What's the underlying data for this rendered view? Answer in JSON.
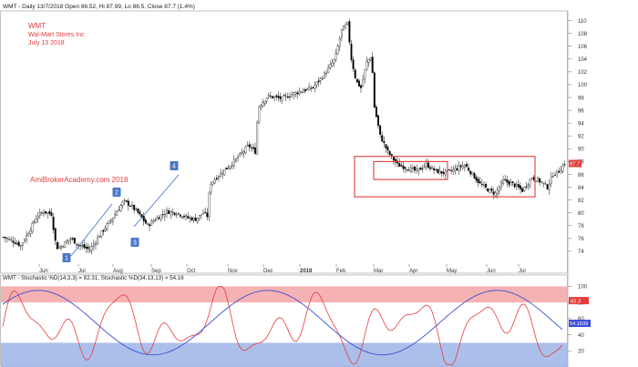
{
  "header": "WMT - Daily 13/7/2018 Open 86.52, Hi 87.99, Lo 86.5, Close 87.7 (1.4%)",
  "overlay": {
    "ticker": "WMT",
    "company": "Wal-Mart Stores Inc",
    "date": "July 13 2018",
    "watermark": "AmiBrokerAcademy.com  2018",
    "wave_labels": [
      "1",
      "2",
      "3",
      "4"
    ]
  },
  "price_panel": {
    "y_ticks": [
      74,
      76,
      78,
      80,
      82,
      84,
      86,
      88,
      90,
      92,
      94,
      96,
      98,
      100,
      102,
      104,
      106,
      108,
      110
    ],
    "y_range": [
      72,
      111.5
    ],
    "last_price_label": "87.7",
    "last_price": 87.7,
    "x_labels": [
      "Jun",
      "Jul",
      "Aug",
      "Sep",
      "Oct",
      "Nov",
      "Dec",
      "2018",
      "Feb",
      "Mar",
      "Apr",
      "May",
      "Jun",
      "Jul"
    ],
    "rectangles": [
      {
        "name": "outer-box",
        "range": [
          82.5,
          88.8
        ]
      },
      {
        "name": "inner-box",
        "range": [
          85.2,
          88.0
        ]
      }
    ]
  },
  "stoch_panel": {
    "title": "WMT - Stochastic %D(14,3,3) = 82.31, Stochastic %D(34,13,13) = 54.16",
    "y_ticks": [
      20,
      40,
      60,
      80,
      100
    ],
    "y_range": [
      0,
      105
    ],
    "overbought_zone": [
      80,
      100
    ],
    "oversold_zone": [
      0,
      30
    ],
    "last_fast_label": "82.3",
    "last_slow_label": "54.1639"
  },
  "colors": {
    "up_bar": "#ffffff",
    "down_bar": "#000000",
    "box": "#e03c3c",
    "fast_stoch": "#e83b3b",
    "slow_stoch": "#3d4fd6",
    "overbought": "#f2a4a4",
    "oversold": "#9cb4e6",
    "label_red": "#e03c3c",
    "wave_label_bg": "#4a78c8",
    "trendline": "#3a6fc4"
  },
  "chart_data": {
    "type": "candlestick",
    "series": [
      {
        "name": "WMT",
        "description": "daily OHLC price bars"
      },
      {
        "name": "Stochastic %D(14,3,3)",
        "last": 82.31
      },
      {
        "name": "Stochastic %D(34,13,13)",
        "last": 54.16
      }
    ],
    "price_path_approx": [
      [
        0,
        76.2
      ],
      [
        10,
        75.6
      ],
      [
        18,
        74.9
      ],
      [
        28,
        77.5
      ],
      [
        35,
        79.5
      ],
      [
        42,
        80.2
      ],
      [
        50,
        79.8
      ],
      [
        55,
        74.5
      ],
      [
        60,
        74.8
      ],
      [
        70,
        76.0
      ],
      [
        78,
        75.0
      ],
      [
        90,
        74.2
      ],
      [
        100,
        76.5
      ],
      [
        115,
        79.5
      ],
      [
        125,
        81.8
      ],
      [
        132,
        81.2
      ],
      [
        140,
        80.0
      ],
      [
        150,
        78.0
      ],
      [
        158,
        79.0
      ],
      [
        170,
        80.2
      ],
      [
        180,
        80.0
      ],
      [
        192,
        79.2
      ],
      [
        200,
        79.0
      ],
      [
        208,
        80.0
      ],
      [
        212,
        79.5
      ],
      [
        215,
        84.5
      ],
      [
        225,
        86.0
      ],
      [
        240,
        88.0
      ],
      [
        255,
        90.5
      ],
      [
        262,
        89.5
      ],
      [
        265,
        96.5
      ],
      [
        275,
        98.2
      ],
      [
        290,
        97.8
      ],
      [
        300,
        98.5
      ],
      [
        310,
        99.0
      ],
      [
        322,
        99.5
      ],
      [
        335,
        101.8
      ],
      [
        345,
        104.0
      ],
      [
        352,
        108.5
      ],
      [
        358,
        109.5
      ],
      [
        362,
        104.0
      ],
      [
        367,
        100.5
      ],
      [
        372,
        99.5
      ],
      [
        378,
        103.5
      ],
      [
        383,
        104.5
      ],
      [
        386,
        96.5
      ],
      [
        392,
        92.0
      ],
      [
        400,
        89.5
      ],
      [
        410,
        87.5
      ],
      [
        420,
        87.0
      ],
      [
        430,
        86.5
      ],
      [
        440,
        87.5
      ],
      [
        450,
        86.5
      ],
      [
        460,
        86.2
      ],
      [
        470,
        86.8
      ],
      [
        480,
        87.5
      ],
      [
        488,
        86.0
      ],
      [
        496,
        84.5
      ],
      [
        505,
        83.5
      ],
      [
        512,
        83.0
      ],
      [
        520,
        85.0
      ],
      [
        530,
        84.5
      ],
      [
        540,
        83.5
      ],
      [
        550,
        85.5
      ],
      [
        560,
        84.8
      ],
      [
        566,
        84.0
      ],
      [
        572,
        86.0
      ],
      [
        578,
        86.5
      ],
      [
        584,
        87.7
      ]
    ],
    "x_labels": [
      "Jun",
      "Jul",
      "Aug",
      "Sep",
      "Oct",
      "Nov",
      "Dec",
      "2018",
      "Feb",
      "Mar",
      "Apr",
      "May",
      "Jun",
      "Jul"
    ],
    "y_range": [
      72,
      111.5
    ]
  }
}
